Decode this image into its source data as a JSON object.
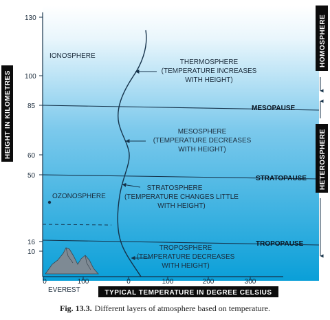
{
  "figure": {
    "y_axis_label": "HEIGHT IN KILOMETRES",
    "x_axis_label": "TYPICAL TEMPERATURE IN DEGREE CELSIUS",
    "y_ticks": [
      "130",
      "100",
      "85",
      "60",
      "50",
      "16",
      "10"
    ],
    "x_ticks": [
      "0",
      "100",
      "0",
      "100",
      "200",
      "300"
    ],
    "boundaries": [
      "MESOPAUSE",
      "STRATOPAUSE",
      "TROPOPAUSE"
    ],
    "layers": [
      {
        "name": "IONOSPHERE",
        "desc": []
      },
      {
        "name": "THERMOSPHERE",
        "desc": [
          "(TEMPERATURE INCREASES",
          "WITH HEIGHT)"
        ]
      },
      {
        "name": "MESOSPHERE",
        "desc": [
          "(TEMPERATURE DECREASES",
          "WITH HEIGHT)"
        ]
      },
      {
        "name": "OZONOSPHERE",
        "desc": []
      },
      {
        "name": "STRATOSPHERE",
        "desc": [
          "(TEMPERATURE CHANGES LITTLE",
          "WITH HEIGHT)"
        ]
      },
      {
        "name": "TROPOSPHERE",
        "desc": [
          "(TEMPERATURE DECREASES",
          "WITH HEIGHT)"
        ]
      }
    ],
    "everest_label": "EVEREST",
    "homosphere_label": "HOMOSPHERE",
    "heterosphere_label": "HETEROSPHERE",
    "colors": {
      "sky_top": "#ffffff",
      "sky_bottom": "#0a9fd8",
      "tab_fill": "#0c0c0c",
      "line": "#15324a",
      "mountain": "#7e8a94"
    }
  },
  "caption": {
    "prefix": "Fig. 13.3.",
    "text": "Different layers of atmosphere based on temperature."
  }
}
